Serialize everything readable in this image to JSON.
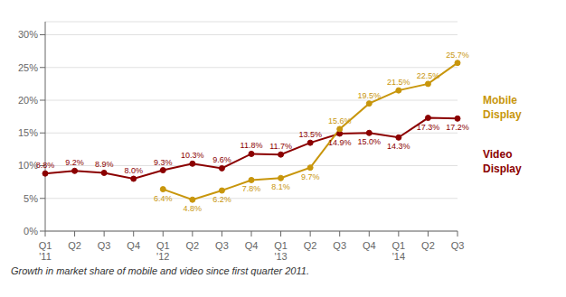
{
  "chart_data": {
    "type": "line",
    "categories": [
      "Q1\n'11",
      "Q2",
      "Q3",
      "Q4",
      "Q1\n'12",
      "Q2",
      "Q3",
      "Q4",
      "Q1\n'13",
      "Q2",
      "Q3",
      "Q4",
      "Q1\n'14",
      "Q2",
      "Q3"
    ],
    "series": [
      {
        "name": "Video\nDisplay",
        "color": "#8B0000",
        "marker": "circle",
        "line_style": "solid",
        "values": [
          8.8,
          9.2,
          8.9,
          8.0,
          9.3,
          10.3,
          9.6,
          11.8,
          11.7,
          13.5,
          14.9,
          15.0,
          14.3,
          17.3,
          17.2
        ],
        "value_labels": [
          "8.8%",
          "9.2%",
          "8.9%",
          "8.0%",
          "9.3%",
          "10.3%",
          "9.6%",
          "11.8%",
          "11.7%",
          "13.5%",
          "14.9%",
          "15.0%",
          "14.3%",
          "17.3%",
          "17.2%"
        ]
      },
      {
        "name": "Mobile\nDisplay",
        "color": "#C8960C",
        "marker": "circle",
        "line_style": "solid",
        "values": [
          null,
          null,
          null,
          null,
          6.4,
          4.8,
          6.2,
          7.8,
          8.1,
          9.7,
          15.6,
          19.5,
          21.5,
          22.5,
          25.7
        ],
        "value_labels": [
          null,
          null,
          null,
          null,
          "6.4%",
          "4.8%",
          "6.2%",
          "7.8%",
          "8.1%",
          "9.7%",
          "15.6%",
          "19.5%",
          "21.5%",
          "22.5%",
          "25.7%"
        ]
      }
    ],
    "ylim": [
      0,
      32
    ],
    "yticks": [
      {
        "value": 0,
        "label": "0%"
      },
      {
        "value": 5,
        "label": "5%"
      },
      {
        "value": 10,
        "label": "10%"
      },
      {
        "value": 15,
        "label": "15%"
      },
      {
        "value": 20,
        "label": "20%"
      },
      {
        "value": 25,
        "label": "25%"
      },
      {
        "value": 30,
        "label": "30%"
      }
    ],
    "grid": true,
    "legend": "right",
    "data_labels": true,
    "annotations": [
      "Growth in market share of mobile and video since first quarter 2011."
    ]
  }
}
